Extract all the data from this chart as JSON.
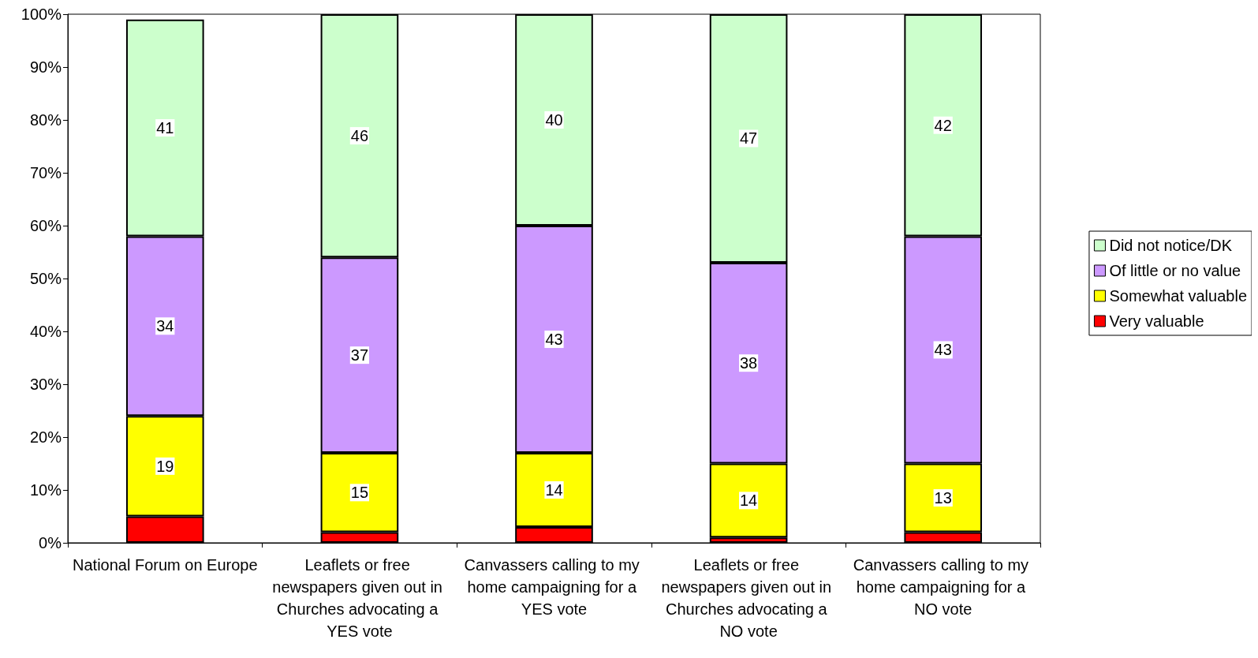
{
  "chart_data": {
    "type": "bar",
    "stacked": true,
    "categories": [
      "National Forum on Europe",
      "Leaflets or free newspapers given out in Churches advocating a YES vote",
      "Canvassers calling to my home campaigning for a YES vote",
      "Leaflets or free newspapers given out in Churches advocating a NO vote",
      "Canvassers calling to my home campaigning for a NO vote"
    ],
    "series": [
      {
        "name": "Very valuable",
        "color": "#ff0000",
        "values": [
          5,
          2,
          3,
          1,
          2
        ],
        "value_labels": [
          null,
          null,
          null,
          null,
          null
        ]
      },
      {
        "name": "Somewhat valuable",
        "color": "#ffff00",
        "values": [
          19,
          15,
          14,
          14,
          13
        ],
        "value_labels": [
          "19",
          "15",
          "14",
          "14",
          "13"
        ]
      },
      {
        "name": "Of little or no value",
        "color": "#cc99ff",
        "values": [
          34,
          37,
          43,
          38,
          43
        ],
        "value_labels": [
          "34",
          "37",
          "43",
          "38",
          "43"
        ]
      },
      {
        "name": "Did not notice/DK",
        "color": "#ccffcc",
        "values": [
          41,
          46,
          40,
          47,
          42
        ],
        "value_labels": [
          "41",
          "46",
          "40",
          "47",
          "42"
        ]
      }
    ],
    "ylim": [
      0,
      100
    ],
    "yticks": [
      {
        "value": 0,
        "label": "0%"
      },
      {
        "value": 10,
        "label": "10%"
      },
      {
        "value": 20,
        "label": "20%"
      },
      {
        "value": 30,
        "label": "30%"
      },
      {
        "value": 40,
        "label": "40%"
      },
      {
        "value": 50,
        "label": "50%"
      },
      {
        "value": 60,
        "label": "60%"
      },
      {
        "value": 70,
        "label": "70%"
      },
      {
        "value": 80,
        "label": "80%"
      },
      {
        "value": 90,
        "label": "90%"
      },
      {
        "value": 100,
        "label": "100%"
      }
    ],
    "grid": false,
    "legend": "right"
  }
}
